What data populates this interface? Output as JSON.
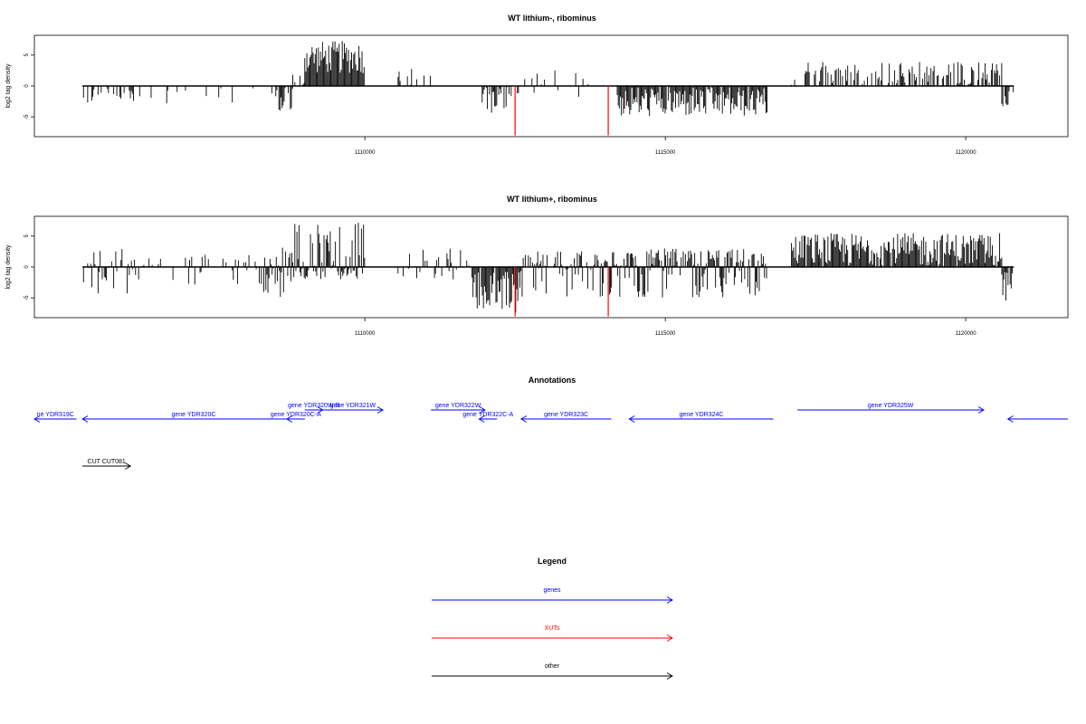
{
  "chart_data": [
    {
      "type": "bar",
      "title": "WT lithium-, ribominus",
      "ylabel": "log2 tag density",
      "xlim": [
        1104500,
        1121700
      ],
      "ylim": [
        -8.2,
        8.2
      ],
      "x_ticks": [
        1110000,
        1115000,
        1120000
      ],
      "y_ticks": [
        -5,
        0,
        5
      ],
      "baseline": 0,
      "regions": [
        {
          "start": 1105300,
          "end": 1106200,
          "min": -3,
          "max": 0,
          "density": 0.35
        },
        {
          "start": 1106200,
          "end": 1108500,
          "min": -3,
          "max": 0,
          "density": 0.12
        },
        {
          "start": 1108500,
          "end": 1108800,
          "min": -4,
          "max": 0,
          "density": 0.8
        },
        {
          "start": 1108800,
          "end": 1109000,
          "min": 0,
          "max": 2,
          "density": 0.5
        },
        {
          "start": 1109000,
          "end": 1110000,
          "min": 2,
          "max": 7.3,
          "density": 1.0
        },
        {
          "start": 1110500,
          "end": 1111300,
          "min": 0,
          "max": 3,
          "density": 0.3
        },
        {
          "start": 1111900,
          "end": 1112400,
          "min": -4.5,
          "max": 0,
          "density": 0.8
        },
        {
          "start": 1112400,
          "end": 1113800,
          "min": -3.5,
          "max": 2.5,
          "density": 0.2
        },
        {
          "start": 1114200,
          "end": 1116700,
          "min": -5,
          "max": 0,
          "density": 1.0
        },
        {
          "start": 1117100,
          "end": 1120600,
          "min": 0,
          "max": 4,
          "density": 0.55
        },
        {
          "start": 1120600,
          "end": 1120800,
          "min": -4,
          "max": 0,
          "density": 0.8
        }
      ],
      "red_bars": [
        {
          "x": 1112500,
          "value": -8
        },
        {
          "x": 1114050,
          "value": -8
        }
      ]
    },
    {
      "type": "bar",
      "title": "WT lithium+, ribominus",
      "ylabel": "log2 tag density",
      "xlim": [
        1104500,
        1121700
      ],
      "ylim": [
        -8.2,
        8.2
      ],
      "x_ticks": [
        1110000,
        1115000,
        1120000
      ],
      "y_ticks": [
        -5,
        0,
        5
      ],
      "baseline": 0,
      "regions": [
        {
          "start": 1105300,
          "end": 1106200,
          "min": -4.5,
          "max": 3,
          "density": 0.6
        },
        {
          "start": 1106200,
          "end": 1108300,
          "min": -3,
          "max": 2,
          "density": 0.3
        },
        {
          "start": 1108300,
          "end": 1108800,
          "min": -5,
          "max": 3.5,
          "density": 0.9
        },
        {
          "start": 1108800,
          "end": 1110000,
          "min": -2,
          "max": 7.3,
          "density": 1.0
        },
        {
          "start": 1110500,
          "end": 1111800,
          "min": -2,
          "max": 3,
          "density": 0.35
        },
        {
          "start": 1111800,
          "end": 1112600,
          "min": -7.5,
          "max": 0,
          "density": 1.0
        },
        {
          "start": 1112600,
          "end": 1114000,
          "min": -5,
          "max": 2.5,
          "density": 0.7
        },
        {
          "start": 1114000,
          "end": 1116700,
          "min": -5,
          "max": 3,
          "density": 0.95
        },
        {
          "start": 1117100,
          "end": 1120600,
          "min": 0,
          "max": 5.5,
          "density": 1.0
        },
        {
          "start": 1120600,
          "end": 1120800,
          "min": -5.5,
          "max": 0,
          "density": 0.9
        }
      ],
      "red_bars": [
        {
          "x": 1112500,
          "value": -8
        },
        {
          "x": 1114050,
          "value": -8
        }
      ]
    }
  ],
  "annotations": {
    "title": "Annotations",
    "features": [
      {
        "label": "ne YDR319C",
        "start": 1104500,
        "end": 1105200,
        "strand": "-",
        "row": 2,
        "color": "#0000ff"
      },
      {
        "label": "gene YDR320C",
        "start": 1105300,
        "end": 1109000,
        "strand": "-",
        "row": 2,
        "color": "#0000ff"
      },
      {
        "label": "gene YDR320W-B",
        "start": 1109000,
        "end": 1109300,
        "strand": "+",
        "row": 1,
        "color": "#0000ff"
      },
      {
        "label": "gene YDR320C-A",
        "start": 1108700,
        "end": 1109000,
        "strand": "-",
        "row": 2,
        "color": "#0000ff"
      },
      {
        "label": "gene YDR321W",
        "start": 1109300,
        "end": 1110300,
        "strand": "+",
        "row": 1,
        "color": "#0000ff"
      },
      {
        "label": "gene YDR322W",
        "start": 1111100,
        "end": 1112000,
        "strand": "+",
        "row": 1,
        "color": "#0000ff"
      },
      {
        "label": "gene YDR322C-A",
        "start": 1111900,
        "end": 1112200,
        "strand": "-",
        "row": 2,
        "color": "#0000ff"
      },
      {
        "label": "gene YDR323C",
        "start": 1112600,
        "end": 1114100,
        "strand": "-",
        "row": 2,
        "color": "#0000ff"
      },
      {
        "label": "gene YDR324C",
        "start": 1114400,
        "end": 1116800,
        "strand": "-",
        "row": 2,
        "color": "#0000ff"
      },
      {
        "label": "gene YDR325W",
        "start": 1117200,
        "end": 1120300,
        "strand": "+",
        "row": 1,
        "color": "#0000ff"
      },
      {
        "label": "",
        "start": 1120700,
        "end": 1121700,
        "strand": "-",
        "row": 2,
        "color": "#0000ff"
      },
      {
        "label": "CUT CUT081",
        "start": 1105300,
        "end": 1106100,
        "strand": "+",
        "row": 3,
        "color": "#000000"
      }
    ]
  },
  "legend": {
    "title": "Legend",
    "items": [
      {
        "label": "genes",
        "color": "#0000ff"
      },
      {
        "label": "XUTs",
        "color": "#ff0000"
      },
      {
        "label": "other",
        "color": "#000000"
      }
    ]
  }
}
